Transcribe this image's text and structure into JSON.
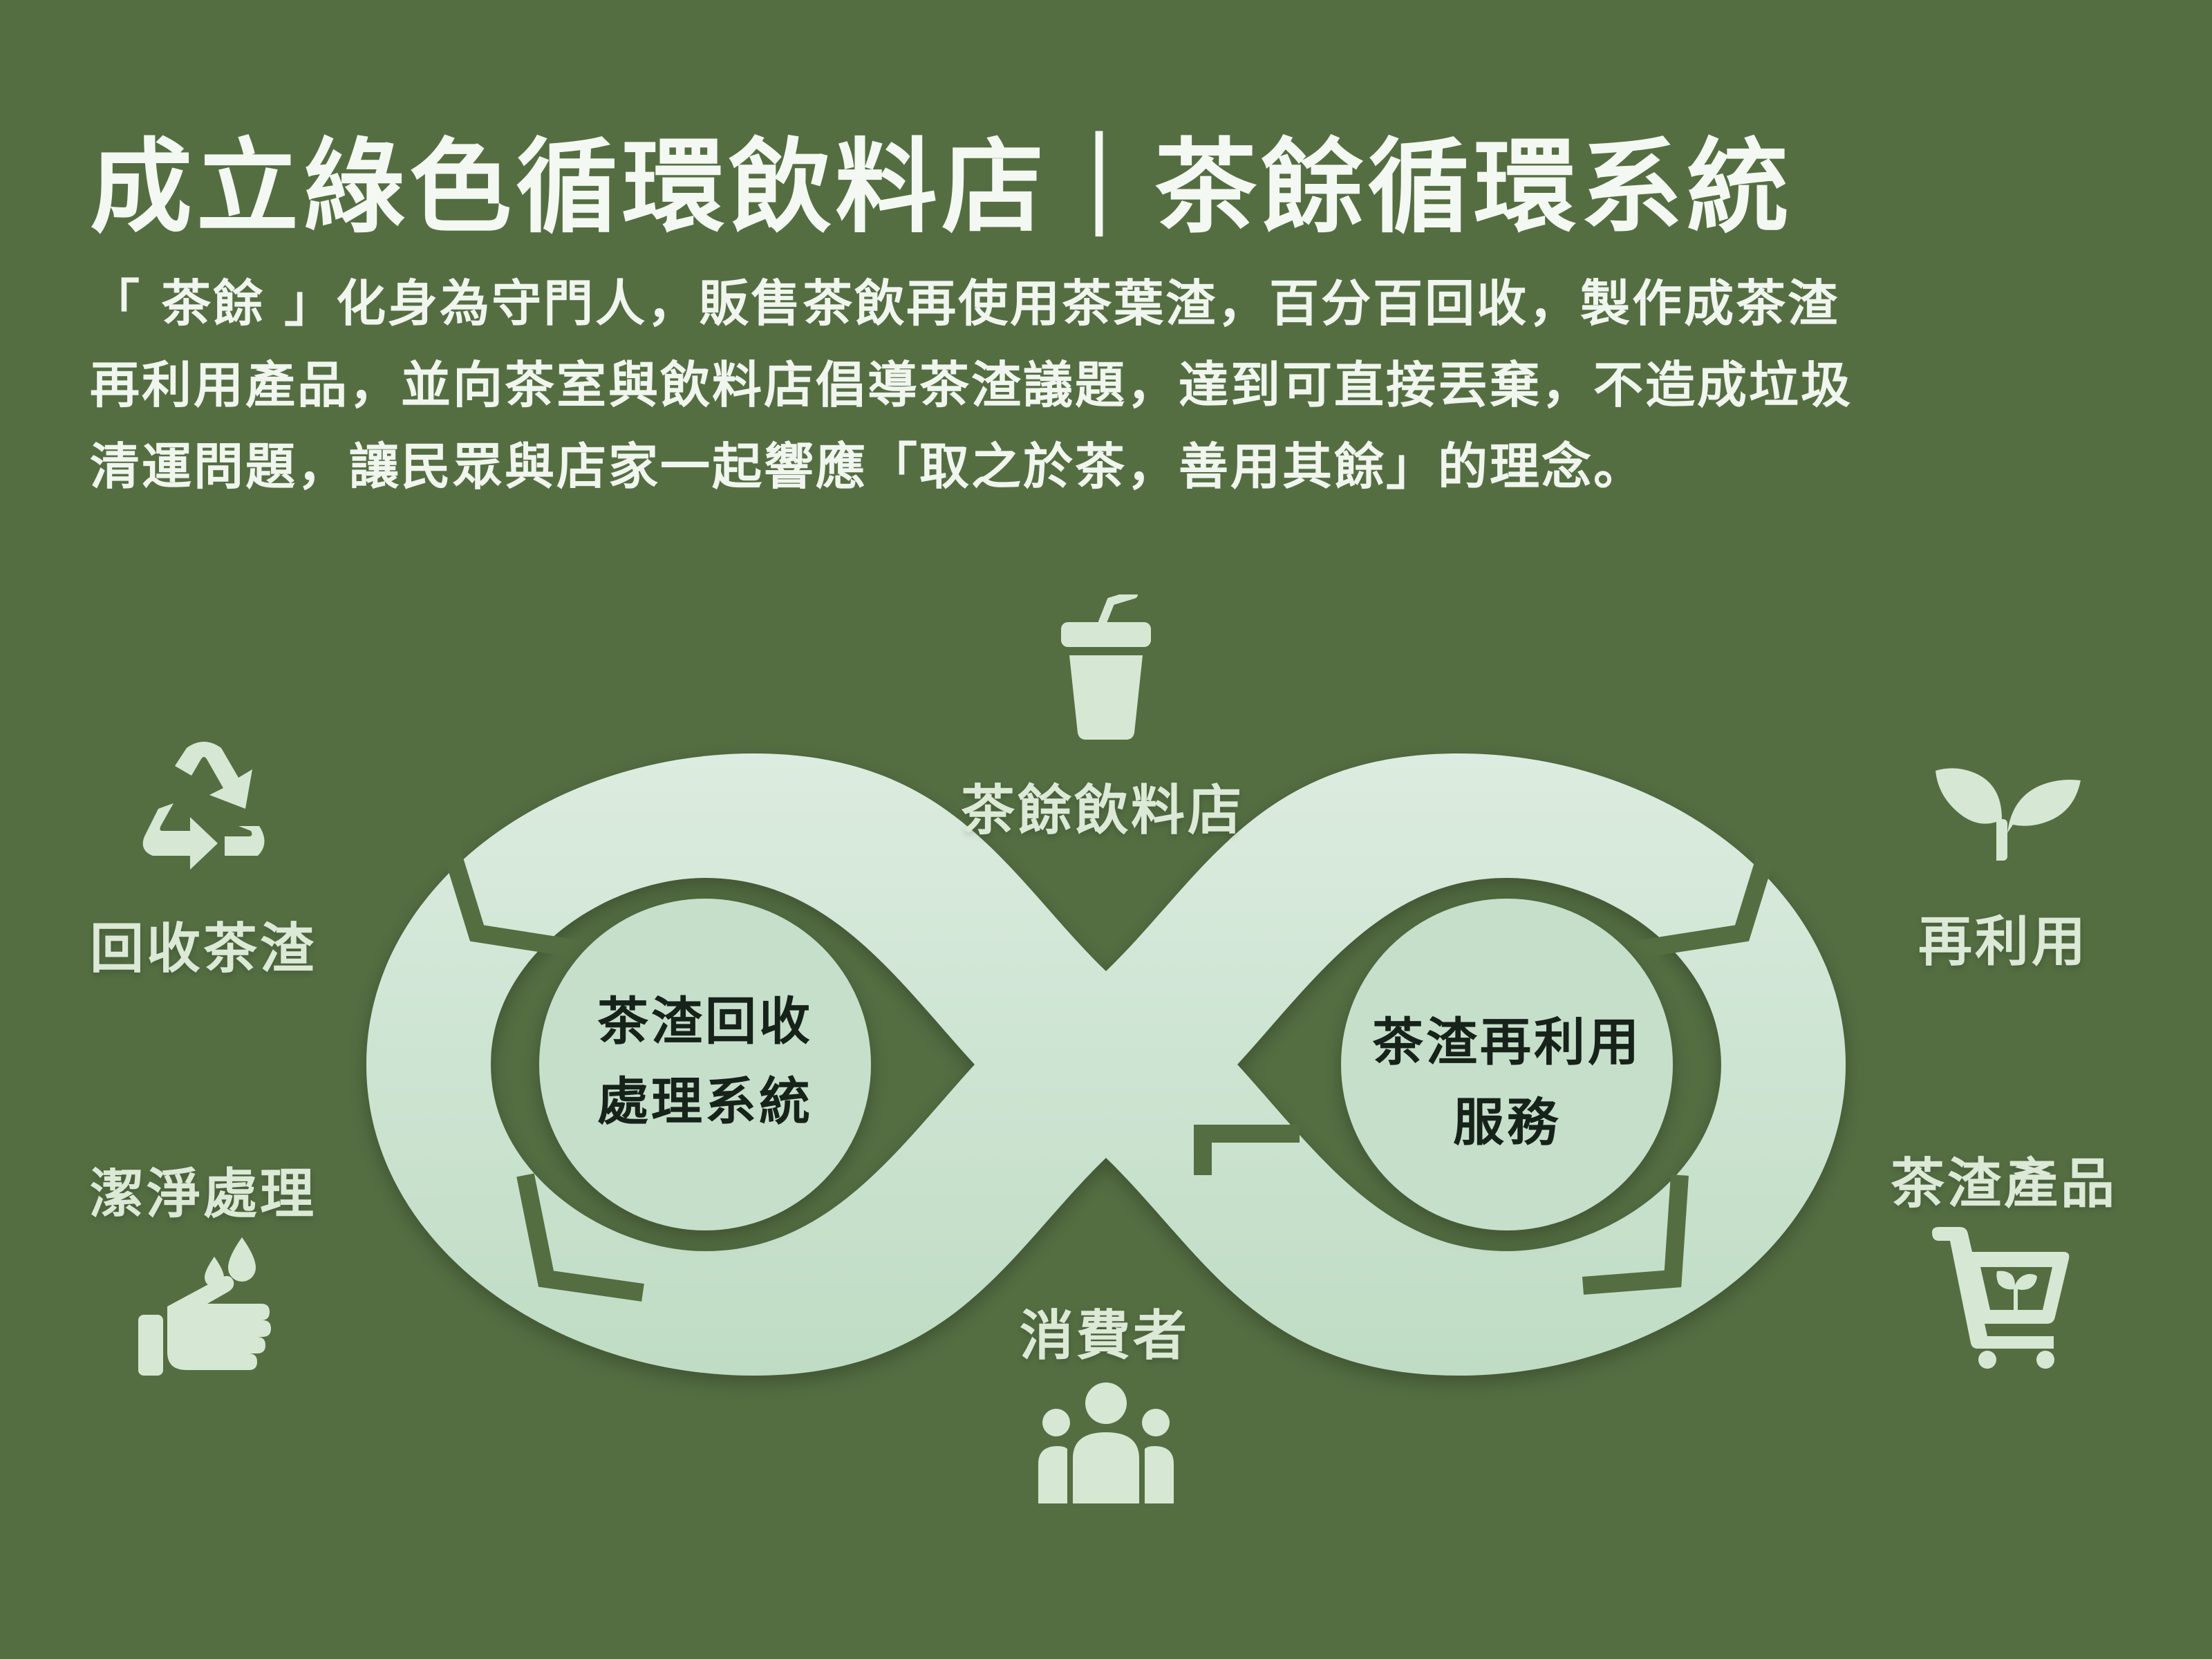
{
  "title": "成立綠色循環飲料店｜茶餘循環系統",
  "description": {
    "line1": "「 茶餘 」化身為守門人，販售茶飲再使用茶葉渣，百分百回收，製作成茶渣",
    "line2": "再利用產品，並向茶室與飲料店倡導茶渣議題，達到可直接丟棄，不造成垃圾",
    "line3": "清運問題，讓民眾與店家一起響應「取之於茶，善用其餘」的理念。"
  },
  "nodes": {
    "shop": {
      "label": "茶餘飲料店",
      "icon": "drink-cup-icon"
    },
    "consumer": {
      "label": "消費者",
      "icon": "people-icon"
    },
    "recycle": {
      "label": "回收茶渣",
      "icon": "recycle-icon"
    },
    "clean": {
      "label": "潔淨處理",
      "icon": "hand-water-icon"
    },
    "reuse": {
      "label": "再利用",
      "icon": "sprout-icon"
    },
    "products": {
      "label": "茶渣產品",
      "icon": "cart-sprout-icon"
    }
  },
  "loops": {
    "left": {
      "line1": "茶渣回收",
      "line2": "處理系統"
    },
    "right": {
      "line1": "茶渣再利用",
      "line2": "服務"
    }
  },
  "colors": {
    "background": "#546e42",
    "loop_fill": "#c9e0cc",
    "icon_fill": "#d6e8d3"
  }
}
